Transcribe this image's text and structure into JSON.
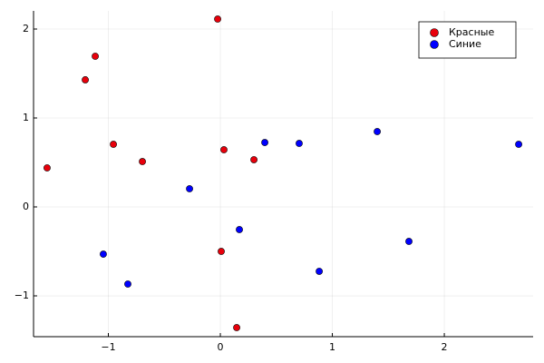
{
  "chart_data": {
    "type": "scatter",
    "series": [
      {
        "name": "Красные",
        "color": "#e8000b",
        "x": [
          -1.547,
          -1.206,
          -1.117,
          -0.955,
          -0.696,
          -0.024,
          0.032,
          0.008,
          0.3,
          0.146
        ],
        "values": [
          0.439,
          1.429,
          1.694,
          0.704,
          0.51,
          2.112,
          0.643,
          -0.5,
          0.531,
          -1.357
        ]
      },
      {
        "name": "Синие",
        "color": "#0000ff",
        "x": [
          -1.045,
          -0.826,
          -0.275,
          0.17,
          0.397,
          0.704,
          0.883,
          1.401,
          1.684,
          2.664
        ],
        "values": [
          -0.531,
          -0.867,
          0.204,
          -0.255,
          0.724,
          0.714,
          -0.724,
          0.847,
          -0.388,
          0.704
        ]
      }
    ],
    "xlim": [
      -1.668,
      2.793
    ],
    "ylim": [
      -1.459,
      2.204
    ],
    "xticks": [
      {
        "value": -1,
        "label": "−1"
      },
      0,
      1,
      2
    ],
    "yticks": [
      {
        "value": -1,
        "label": "−1"
      },
      0,
      1,
      2
    ],
    "grid": true,
    "legend": "top-right"
  }
}
